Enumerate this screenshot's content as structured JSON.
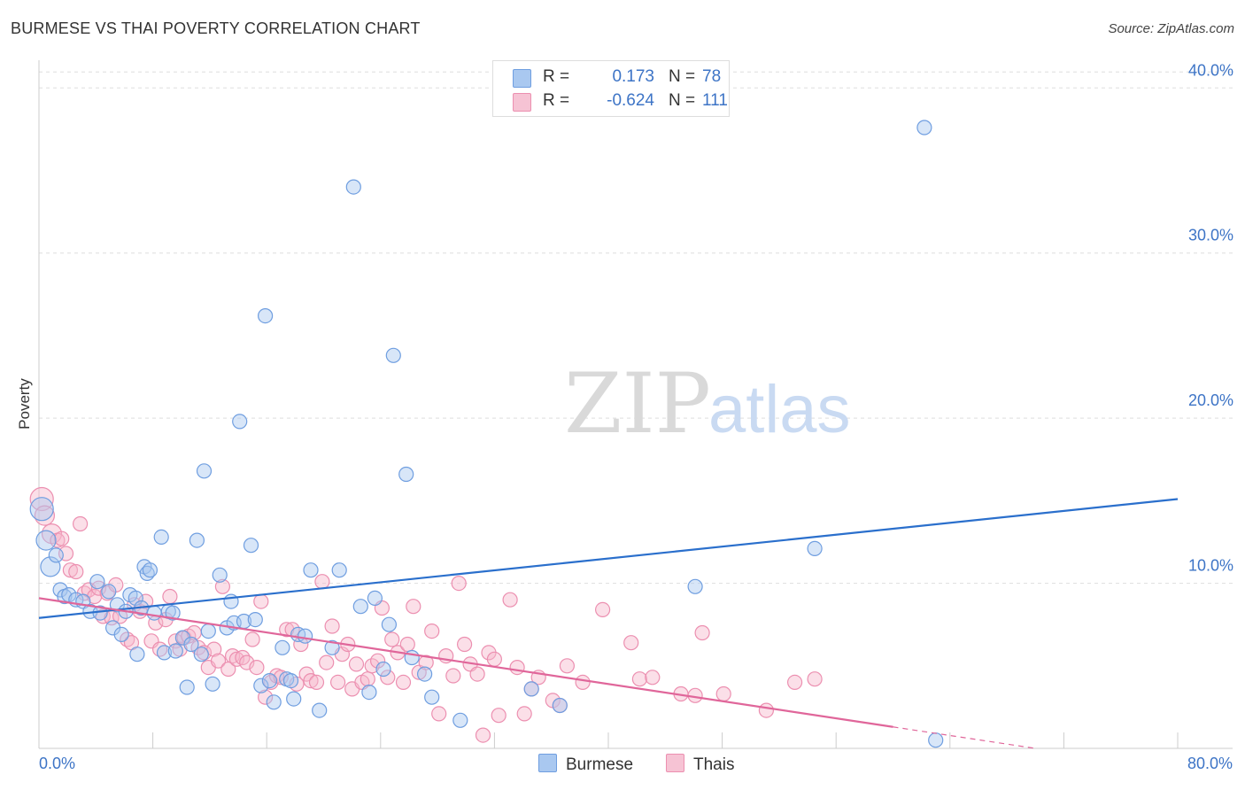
{
  "title": "BURMESE VS THAI POVERTY CORRELATION CHART",
  "source": "Source: ZipAtlas.com",
  "colors": {
    "burmese_fill": "#a9c8f0",
    "burmese_stroke": "#6f9ee0",
    "burmese_line": "#2a6fcc",
    "thai_fill": "#f6b7cc",
    "thai_stroke": "#ec8fb0",
    "thai_line": "#e0669a",
    "axis_text": "#3d74c6",
    "grid": "#dddddd"
  },
  "legend": {
    "rows": [
      {
        "r_label": "R =",
        "r_value": "0.173",
        "n_label": "N =",
        "n_value": "78"
      },
      {
        "r_label": "R =",
        "r_value": "-0.624",
        "n_label": "N =",
        "n_value": "111"
      }
    ],
    "bottom": [
      {
        "label": "Burmese"
      },
      {
        "label": "Thais"
      }
    ]
  },
  "chart_data": {
    "type": "scatter",
    "title": "BURMESE VS THAI POVERTY CORRELATION CHART",
    "xlabel": "",
    "ylabel": "Poverty",
    "xlim": [
      0,
      80
    ],
    "ylim": [
      0,
      42
    ],
    "x_tick_labels": [
      "0.0%",
      "80.0%"
    ],
    "y_ticks": [
      10,
      20,
      30,
      40
    ],
    "y_tick_labels": [
      "10.0%",
      "20.0%",
      "30.0%",
      "40.0%"
    ],
    "grid": true,
    "legend_position": "top-center",
    "watermark": "ZIPatlas",
    "series": [
      {
        "name": "Burmese",
        "r": 0.173,
        "n": 78,
        "trend": {
          "x0": 0,
          "y0": 7.9,
          "x1": 80,
          "y1": 15.1
        },
        "points": [
          [
            0.2,
            14.5
          ],
          [
            0.5,
            12.6
          ],
          [
            0.8,
            11.0
          ],
          [
            1.2,
            11.7
          ],
          [
            1.5,
            9.6
          ],
          [
            1.8,
            9.2
          ],
          [
            2.1,
            9.3
          ],
          [
            2.6,
            9.0
          ],
          [
            3.1,
            8.9
          ],
          [
            3.6,
            8.3
          ],
          [
            4.1,
            10.1
          ],
          [
            4.3,
            8.2
          ],
          [
            4.9,
            9.5
          ],
          [
            5.2,
            7.3
          ],
          [
            5.5,
            8.7
          ],
          [
            5.8,
            6.9
          ],
          [
            6.1,
            8.3
          ],
          [
            6.4,
            9.3
          ],
          [
            6.8,
            9.1
          ],
          [
            6.9,
            5.7
          ],
          [
            7.2,
            8.5
          ],
          [
            7.4,
            11.0
          ],
          [
            7.6,
            10.6
          ],
          [
            7.8,
            10.8
          ],
          [
            8.1,
            8.2
          ],
          [
            8.6,
            12.8
          ],
          [
            8.8,
            5.8
          ],
          [
            9.1,
            8.3
          ],
          [
            9.4,
            8.2
          ],
          [
            9.6,
            5.9
          ],
          [
            10.1,
            6.7
          ],
          [
            10.4,
            3.7
          ],
          [
            10.7,
            6.3
          ],
          [
            11.1,
            12.6
          ],
          [
            11.4,
            5.7
          ],
          [
            11.6,
            16.8
          ],
          [
            11.9,
            7.1
          ],
          [
            12.2,
            3.9
          ],
          [
            12.7,
            10.5
          ],
          [
            13.2,
            7.3
          ],
          [
            13.5,
            8.9
          ],
          [
            13.7,
            7.6
          ],
          [
            14.1,
            19.8
          ],
          [
            14.4,
            7.7
          ],
          [
            14.9,
            12.3
          ],
          [
            15.2,
            7.8
          ],
          [
            15.6,
            3.8
          ],
          [
            15.9,
            26.2
          ],
          [
            16.2,
            4.1
          ],
          [
            16.5,
            2.8
          ],
          [
            17.1,
            6.1
          ],
          [
            17.4,
            4.2
          ],
          [
            17.7,
            4.1
          ],
          [
            17.9,
            3.0
          ],
          [
            18.2,
            6.9
          ],
          [
            18.7,
            6.8
          ],
          [
            19.1,
            10.8
          ],
          [
            19.7,
            2.3
          ],
          [
            20.6,
            6.1
          ],
          [
            21.1,
            10.8
          ],
          [
            22.1,
            34.0
          ],
          [
            22.6,
            8.6
          ],
          [
            23.2,
            3.4
          ],
          [
            23.6,
            9.1
          ],
          [
            24.2,
            4.8
          ],
          [
            24.6,
            7.5
          ],
          [
            24.9,
            23.8
          ],
          [
            25.8,
            16.6
          ],
          [
            26.2,
            5.5
          ],
          [
            27.1,
            4.5
          ],
          [
            27.6,
            3.1
          ],
          [
            29.6,
            1.7
          ],
          [
            34.6,
            3.6
          ],
          [
            36.6,
            2.6
          ],
          [
            46.1,
            9.8
          ],
          [
            54.5,
            12.1
          ],
          [
            62.2,
            37.6
          ],
          [
            63.0,
            0.5
          ]
        ]
      },
      {
        "name": "Thais",
        "r": -0.624,
        "n": 111,
        "trend": {
          "x0": 0,
          "y0": 9.1,
          "x1": 60,
          "y1": 1.3,
          "dash_to_x": 70,
          "dash_to_y": 0.0
        },
        "points": [
          [
            0.2,
            15.1
          ],
          [
            0.4,
            14.1
          ],
          [
            0.9,
            13.0
          ],
          [
            1.3,
            12.6
          ],
          [
            1.6,
            12.7
          ],
          [
            1.9,
            11.8
          ],
          [
            2.2,
            10.8
          ],
          [
            2.6,
            10.7
          ],
          [
            2.9,
            13.6
          ],
          [
            3.2,
            9.4
          ],
          [
            3.5,
            9.6
          ],
          [
            3.9,
            9.2
          ],
          [
            4.2,
            9.7
          ],
          [
            4.5,
            8.0
          ],
          [
            4.8,
            9.4
          ],
          [
            5.1,
            7.9
          ],
          [
            5.4,
            9.9
          ],
          [
            5.7,
            8.0
          ],
          [
            6.2,
            6.6
          ],
          [
            6.5,
            6.4
          ],
          [
            6.7,
            8.7
          ],
          [
            7.1,
            8.3
          ],
          [
            7.5,
            8.9
          ],
          [
            7.9,
            6.5
          ],
          [
            8.2,
            7.6
          ],
          [
            8.5,
            6.0
          ],
          [
            8.9,
            7.8
          ],
          [
            9.2,
            9.2
          ],
          [
            9.6,
            6.5
          ],
          [
            9.9,
            6.0
          ],
          [
            10.2,
            6.7
          ],
          [
            10.5,
            6.8
          ],
          [
            10.9,
            7.0
          ],
          [
            11.2,
            6.1
          ],
          [
            11.6,
            5.8
          ],
          [
            11.9,
            4.9
          ],
          [
            12.3,
            6.0
          ],
          [
            12.6,
            5.3
          ],
          [
            12.9,
            9.8
          ],
          [
            13.3,
            4.8
          ],
          [
            13.6,
            5.6
          ],
          [
            13.9,
            5.4
          ],
          [
            14.3,
            5.5
          ],
          [
            14.6,
            5.2
          ],
          [
            15.0,
            6.6
          ],
          [
            15.3,
            4.9
          ],
          [
            15.6,
            8.9
          ],
          [
            15.9,
            3.1
          ],
          [
            16.3,
            4.0
          ],
          [
            16.7,
            4.4
          ],
          [
            17.0,
            4.3
          ],
          [
            17.4,
            7.2
          ],
          [
            17.8,
            7.2
          ],
          [
            18.1,
            3.9
          ],
          [
            18.4,
            6.3
          ],
          [
            18.8,
            4.5
          ],
          [
            19.1,
            4.1
          ],
          [
            19.5,
            4.0
          ],
          [
            19.9,
            10.1
          ],
          [
            20.2,
            5.2
          ],
          [
            20.6,
            7.4
          ],
          [
            21.0,
            4.0
          ],
          [
            21.3,
            5.7
          ],
          [
            21.7,
            6.3
          ],
          [
            22.0,
            3.6
          ],
          [
            22.3,
            5.1
          ],
          [
            22.7,
            4.0
          ],
          [
            23.1,
            4.2
          ],
          [
            23.4,
            5.0
          ],
          [
            23.8,
            5.3
          ],
          [
            24.1,
            8.5
          ],
          [
            24.5,
            4.3
          ],
          [
            24.8,
            6.6
          ],
          [
            25.2,
            5.8
          ],
          [
            25.6,
            4.0
          ],
          [
            25.9,
            6.3
          ],
          [
            26.3,
            8.6
          ],
          [
            26.7,
            4.6
          ],
          [
            27.2,
            5.2
          ],
          [
            27.6,
            7.1
          ],
          [
            28.1,
            2.1
          ],
          [
            28.6,
            5.6
          ],
          [
            29.1,
            4.4
          ],
          [
            29.5,
            10.0
          ],
          [
            29.9,
            6.3
          ],
          [
            30.3,
            5.1
          ],
          [
            30.8,
            4.5
          ],
          [
            31.2,
            0.8
          ],
          [
            31.6,
            5.8
          ],
          [
            32.0,
            5.4
          ],
          [
            32.3,
            2.0
          ],
          [
            33.1,
            9.0
          ],
          [
            33.6,
            4.9
          ],
          [
            34.1,
            2.1
          ],
          [
            34.6,
            3.6
          ],
          [
            35.1,
            4.3
          ],
          [
            36.1,
            2.9
          ],
          [
            36.6,
            2.6
          ],
          [
            37.1,
            5.0
          ],
          [
            38.2,
            4.0
          ],
          [
            39.6,
            8.4
          ],
          [
            41.6,
            6.4
          ],
          [
            42.2,
            4.2
          ],
          [
            43.1,
            4.3
          ],
          [
            45.1,
            3.3
          ],
          [
            46.1,
            3.2
          ],
          [
            46.6,
            7.0
          ],
          [
            48.1,
            3.3
          ],
          [
            51.1,
            2.3
          ],
          [
            53.1,
            4.0
          ],
          [
            54.5,
            4.2
          ]
        ]
      }
    ]
  }
}
